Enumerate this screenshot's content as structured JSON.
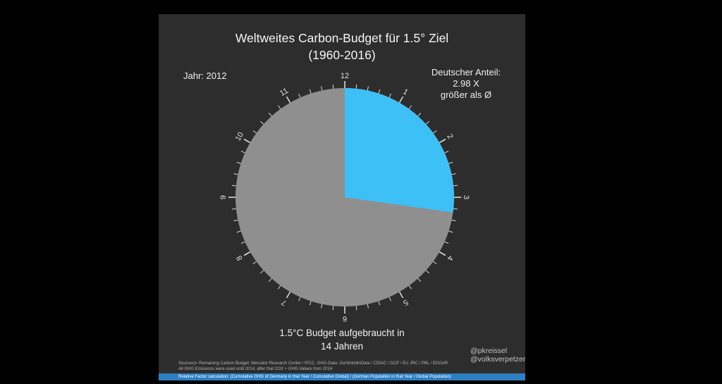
{
  "title": {
    "line1": "Weltweites Carbon-Budget für 1.5° Ziel",
    "line2": "(1960-2016)"
  },
  "year_label": "Jahr: 2012",
  "right_annotation": {
    "line1": "Deutscher Anteil:",
    "line2": "2.98 X",
    "line3": "größer als Ø"
  },
  "caption": {
    "line1": "1.5°C Budget aufgebraucht in",
    "line2": "14 Jahren"
  },
  "credits": {
    "line1": "@pkreissel",
    "line2": "@volksverpetzer"
  },
  "sources": {
    "line1": "Sources)= Remaining Carbon Budget: Mercator Research Center / IPCC, GHG-Data: OurWorldInData / CDIAC / GCP / EU JRC / PBL / EDGAR",
    "line2": "All GHG Emissions were used until 2014, after that CO2 + GHG-Values from 2014",
    "line3": "Relative Factor calculation: (Cumulative GHG of Germany in that Year / Cumulative Global) / (German Population in that Year / Global Population)"
  },
  "chart_data": {
    "type": "pie",
    "style": "clock-dial",
    "title": "Weltweites Carbon-Budget für 1.5° Ziel (1960-2016)",
    "clock_numbers": [
      "12",
      "1",
      "2",
      "3",
      "4",
      "5",
      "6",
      "7",
      "8",
      "9",
      "10",
      "11"
    ],
    "face_color": "#8f8f8f",
    "tick_color": "#d9d9d9",
    "number_color": "#e0e0e0",
    "background_color": "#2d2d2d",
    "wedge": {
      "start_deg": 0,
      "end_deg": 98,
      "fraction": 0.27,
      "color": "#3dc0f5"
    },
    "annotations": {
      "year": "Jahr: 2012",
      "german_share": "Deutscher Anteil: 2.98 X größer als Ø",
      "result": "1.5°C Budget aufgebraucht in 14 Jahren"
    },
    "legend_position": "none",
    "grid": false
  }
}
